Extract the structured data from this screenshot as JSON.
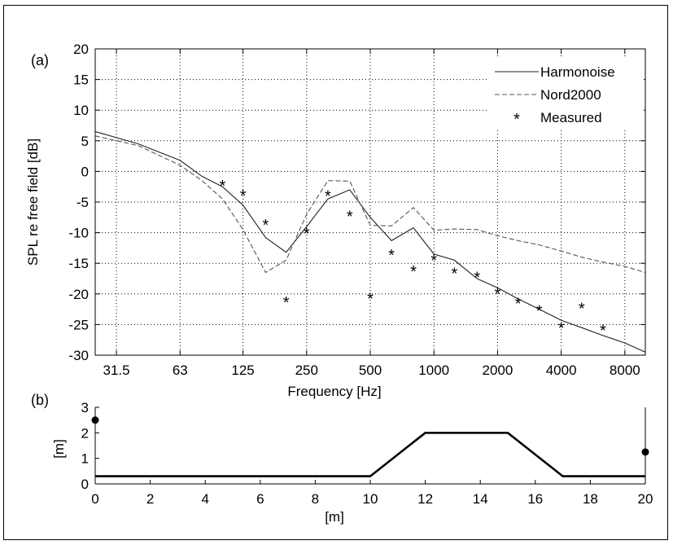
{
  "panel_a_label": "(a)",
  "panel_b_label": "(b)",
  "chart_data": [
    {
      "type": "line",
      "panel": "(a)",
      "xlabel": "Frequency [Hz]",
      "ylabel": "SPL re free field [dB]",
      "xscale": "log",
      "xlim": [
        25,
        10000
      ],
      "ylim": [
        -30,
        20
      ],
      "xticks": [
        31.5,
        63,
        125,
        250,
        500,
        1000,
        2000,
        4000,
        8000
      ],
      "xtick_labels": [
        "31.5",
        "63",
        "125",
        "250",
        "500",
        "1000",
        "2000",
        "4000",
        "8000"
      ],
      "yticks": [
        -30,
        -25,
        -20,
        -15,
        -10,
        -5,
        0,
        5,
        10,
        15,
        20
      ],
      "ytick_labels": [
        "-30",
        "-25",
        "-20",
        "-15",
        "-10",
        "-5",
        "0",
        "5",
        "10",
        "15",
        "20"
      ],
      "grid": true,
      "legend_position": "top-right",
      "series": [
        {
          "name": "Harmonoise",
          "style": "solid",
          "x": [
            25,
            40,
            63,
            80,
            100,
            125,
            160,
            200,
            250,
            315,
            400,
            500,
            630,
            800,
            1000,
            1250,
            1600,
            2000,
            2500,
            3150,
            4000,
            5000,
            6300,
            8000,
            10000
          ],
          "y": [
            6.5,
            4.5,
            1.8,
            -0.8,
            -2.5,
            -5.5,
            -10.8,
            -13.2,
            -9.0,
            -4.5,
            -3.0,
            -7.5,
            -11.3,
            -9.2,
            -13.5,
            -14.5,
            -17.5,
            -19.0,
            -20.8,
            -22.5,
            -24.3,
            -25.5,
            -26.8,
            -28.0,
            -29.5
          ]
        },
        {
          "name": "Nord2000",
          "style": "dashed",
          "x": [
            25,
            40,
            63,
            80,
            100,
            125,
            160,
            200,
            250,
            315,
            400,
            500,
            630,
            800,
            1000,
            1250,
            1600,
            2000,
            2500,
            3150,
            4000,
            5000,
            6300,
            8000,
            10000
          ],
          "y": [
            5.8,
            4.2,
            1.0,
            -1.5,
            -4.5,
            -9.5,
            -16.5,
            -14.5,
            -7.0,
            -1.5,
            -1.6,
            -8.8,
            -8.9,
            -5.9,
            -9.6,
            -9.4,
            -9.5,
            -10.5,
            -11.3,
            -12.0,
            -13.0,
            -14.0,
            -14.8,
            -15.5,
            -16.5
          ]
        },
        {
          "name": "Measured",
          "style": "marker",
          "x": [
            100,
            125,
            160,
            200,
            250,
            315,
            400,
            500,
            630,
            800,
            1000,
            1250,
            1600,
            2000,
            2500,
            3150,
            4000,
            5000,
            6300
          ],
          "y": [
            -2.2,
            -3.8,
            -8.6,
            -21.2,
            -10.0,
            -3.9,
            -7.2,
            -20.6,
            -13.5,
            -16.2,
            -14.4,
            -16.5,
            -17.2,
            -19.8,
            -21.4,
            -22.6,
            -25.4,
            -22.2,
            -25.8
          ]
        }
      ]
    },
    {
      "type": "line",
      "panel": "(b)",
      "xlabel": "[m]",
      "ylabel": "[m]",
      "xlim": [
        0,
        20
      ],
      "ylim": [
        0,
        3
      ],
      "xticks": [
        0,
        2,
        4,
        6,
        8,
        10,
        12,
        14,
        16,
        18,
        20
      ],
      "xtick_labels": [
        "0",
        "2",
        "4",
        "6",
        "8",
        "10",
        "12",
        "14",
        "16",
        "18",
        "20"
      ],
      "yticks": [
        0,
        1,
        2,
        3
      ],
      "ytick_labels": [
        "0",
        "1",
        "2",
        "3"
      ],
      "grid": false,
      "series": [
        {
          "style": "thick-line",
          "x": [
            0,
            10,
            12,
            15,
            17,
            20
          ],
          "y": [
            0.3,
            0.3,
            2.0,
            2.0,
            0.3,
            0.3
          ]
        }
      ],
      "points": [
        {
          "x": 0,
          "y": 2.5
        },
        {
          "x": 20,
          "y": 1.25
        }
      ],
      "vertical_lines": [
        20
      ]
    }
  ]
}
